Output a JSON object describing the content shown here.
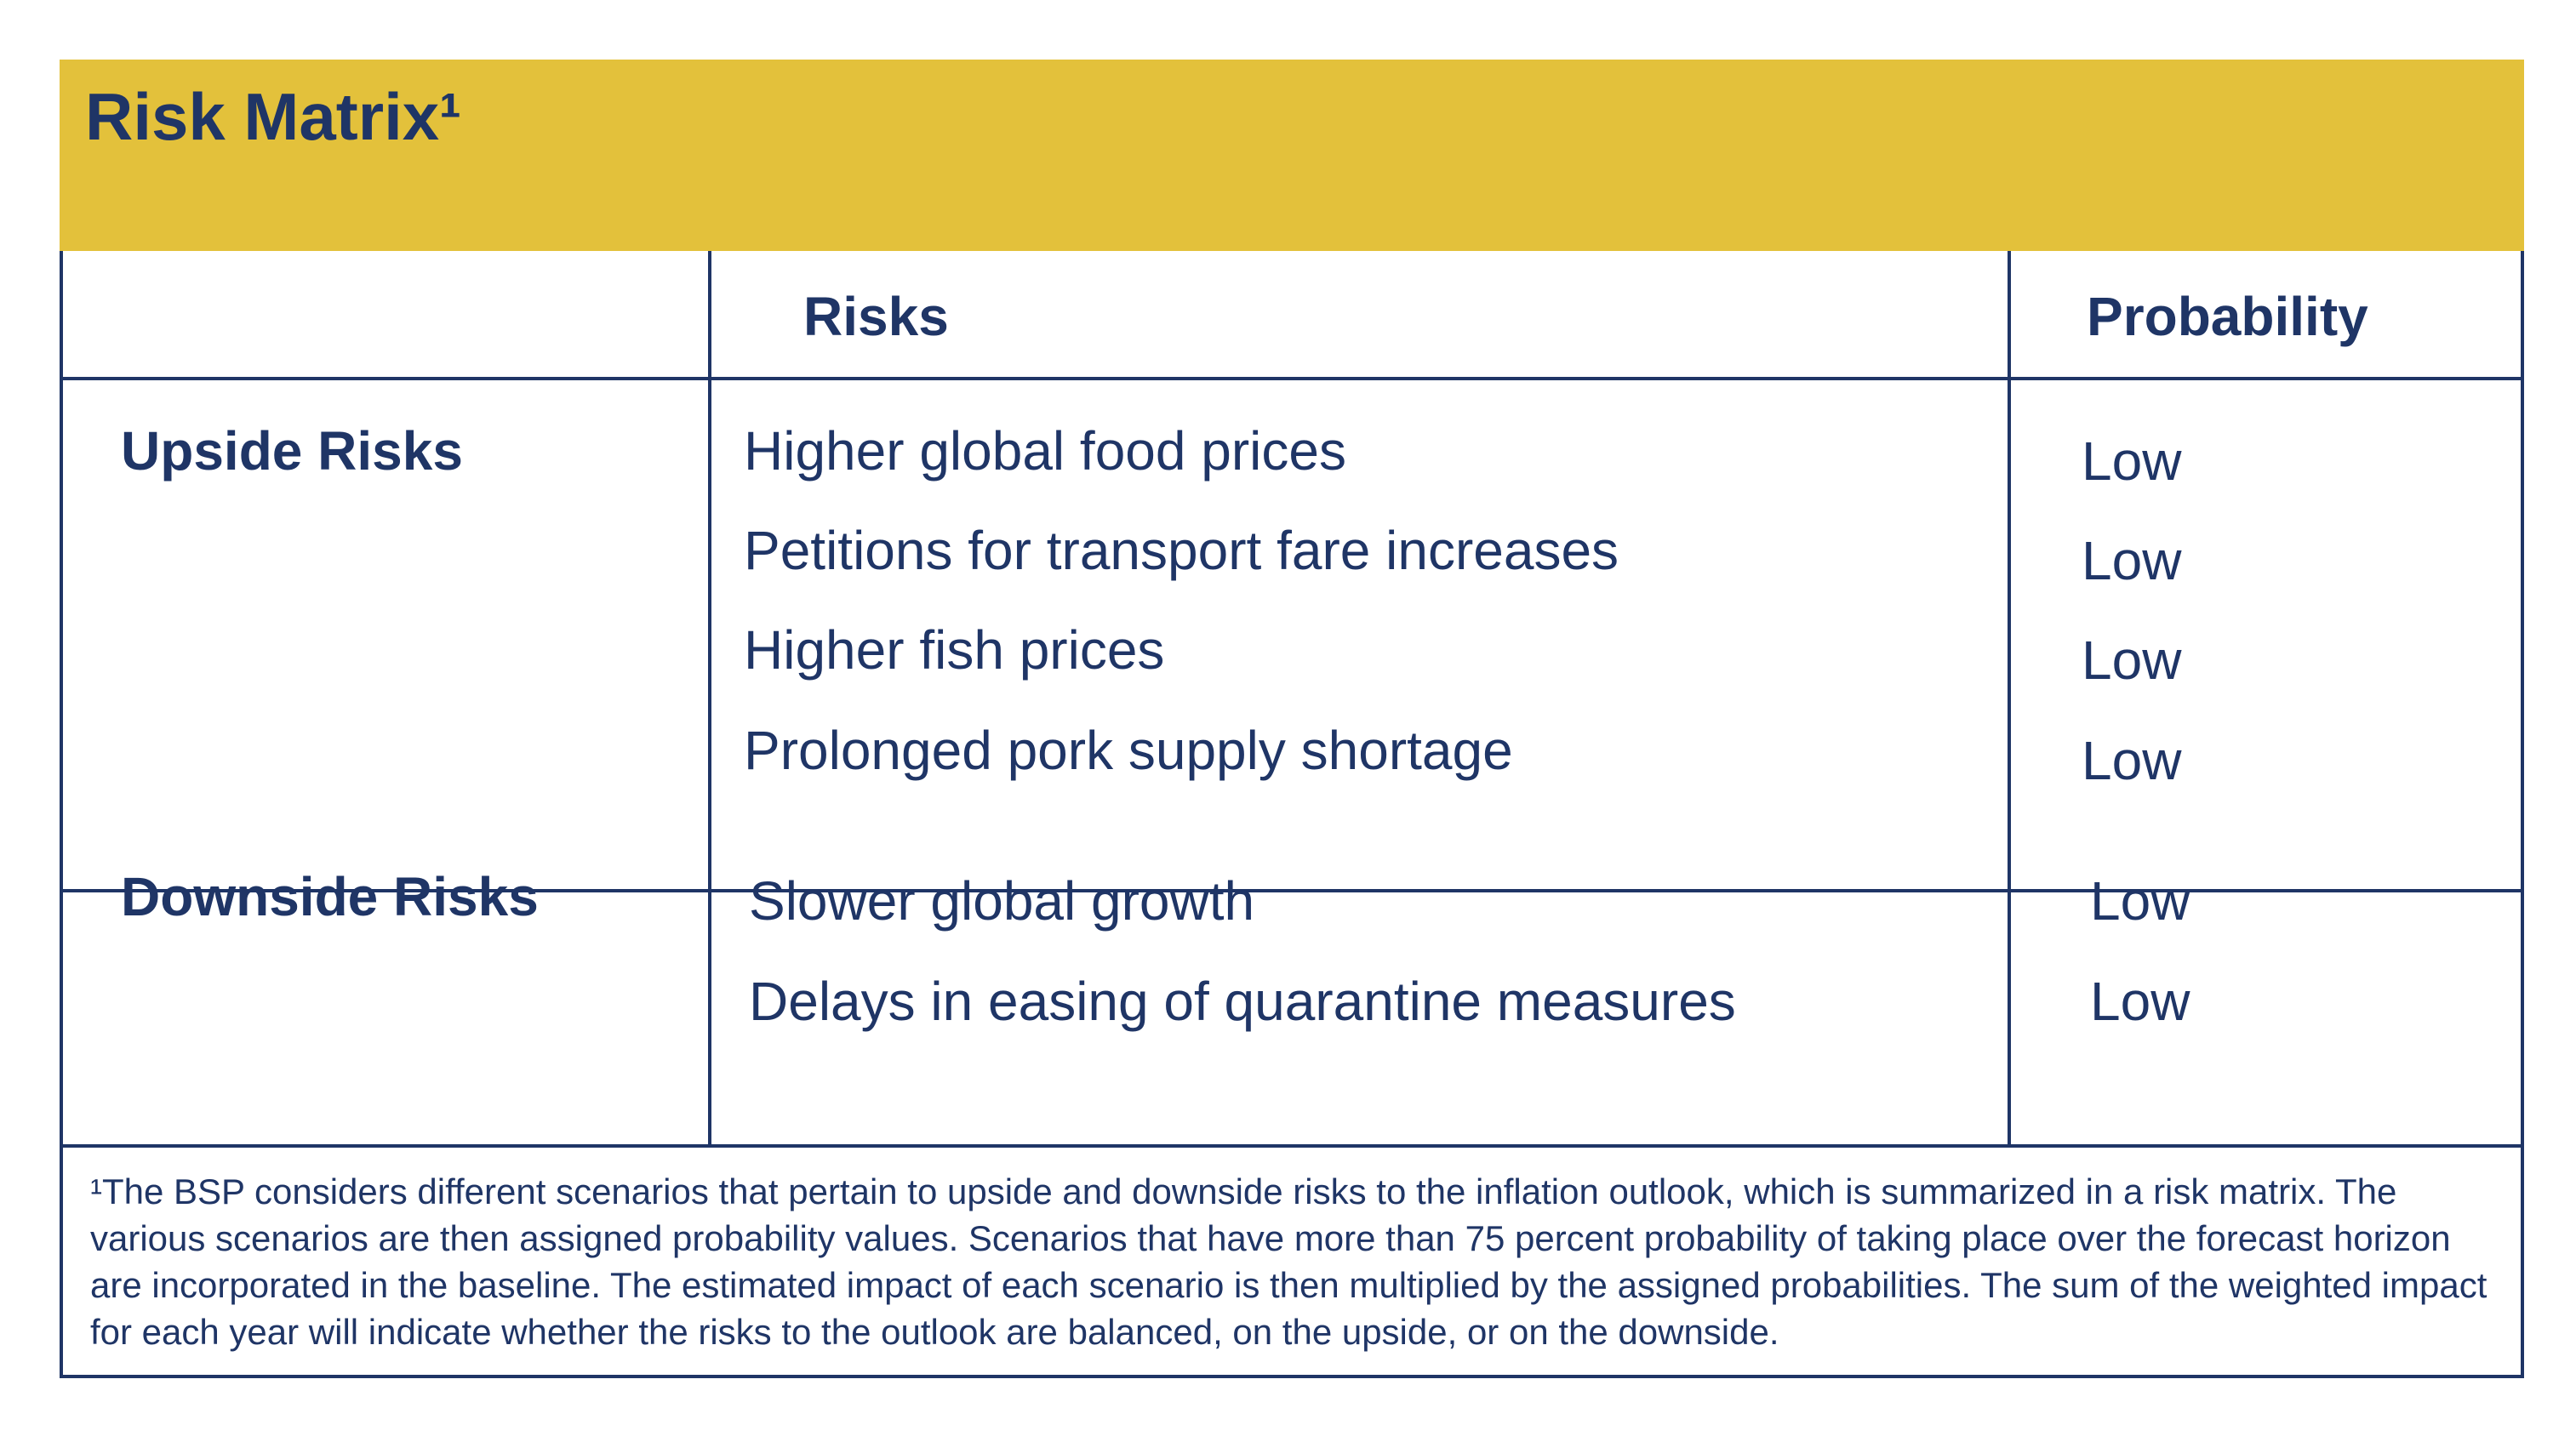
{
  "title": "Risk Matrix¹",
  "header": {
    "group_col": "",
    "risks_col": "Risks",
    "probability_col": "Probability"
  },
  "upside": {
    "label": "Upside Risks",
    "risks": [
      {
        "risk": "Higher global food prices",
        "probability": "Low"
      },
      {
        "risk": "Petitions for transport fare increases",
        "probability": "Low"
      },
      {
        "risk": "Higher fish prices",
        "probability": "Low"
      },
      {
        "risk": "Prolonged pork supply shortage",
        "probability": "Low"
      }
    ]
  },
  "downside": {
    "label": "Downside Risks",
    "risks": [
      {
        "risk": "Slower global growth",
        "probability": "Low"
      },
      {
        "risk": "Delays in easing of quarantine measures",
        "probability": "Low"
      }
    ]
  },
  "footnote": "¹The BSP considers different scenarios that pertain to upside and downside risks to the inflation outlook, which is summarized in a risk matrix. The various scenarios are then assigned probability values. Scenarios that have more than 75 percent probability of taking place over the forecast horizon are incorporated in the baseline. The estimated impact of each scenario is then multiplied by the assigned probabilities. The sum of the weighted impact for each year will indicate whether the risks to the outlook are balanced, on the upside, or on the downside.",
  "colors": {
    "title_bar": "#e3c13b",
    "ink": "#1f3566"
  }
}
